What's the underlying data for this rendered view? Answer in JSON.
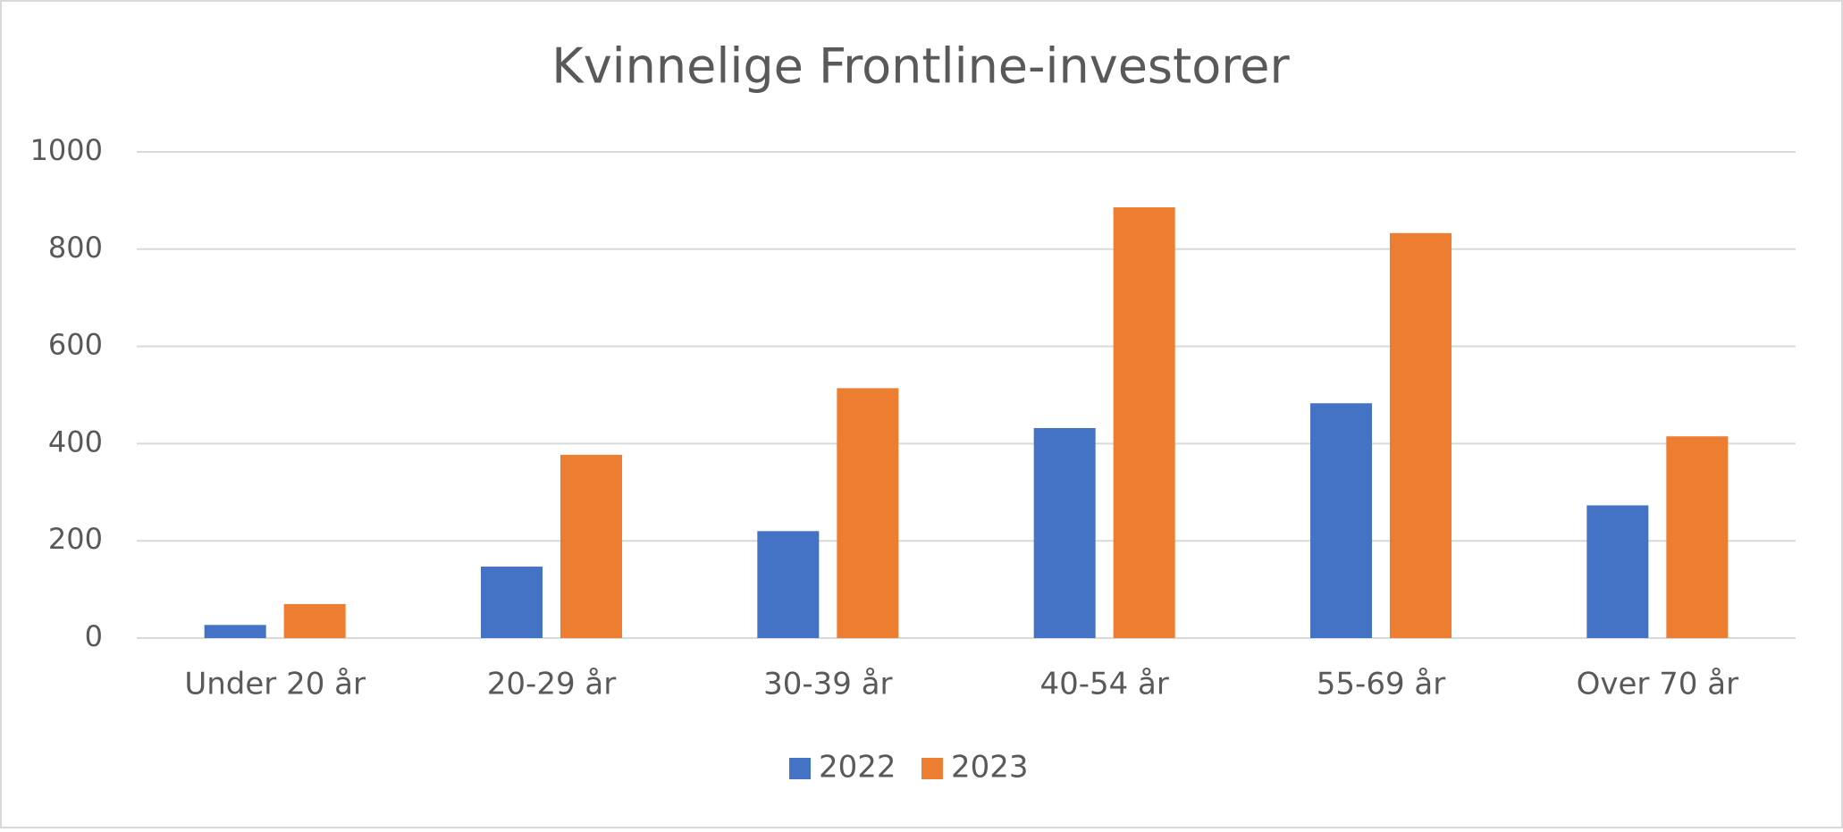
{
  "chart_data": {
    "type": "bar",
    "title": "Kvinnelige Frontline-investorer",
    "categories": [
      "Under 20 år",
      "20-29 år",
      "30-39 år",
      "40-54 år",
      "55-69 år",
      "Over 70 år"
    ],
    "series": [
      {
        "name": "2022",
        "color": "#4472c4",
        "values": [
          27,
          147,
          220,
          432,
          483,
          273
        ]
      },
      {
        "name": "2023",
        "color": "#ed7d31",
        "values": [
          70,
          377,
          514,
          886,
          833,
          415
        ]
      }
    ],
    "ylim": [
      0,
      1000
    ],
    "yticks": [
      0,
      200,
      400,
      600,
      800,
      1000
    ],
    "grid": true,
    "legend": "bottom"
  }
}
